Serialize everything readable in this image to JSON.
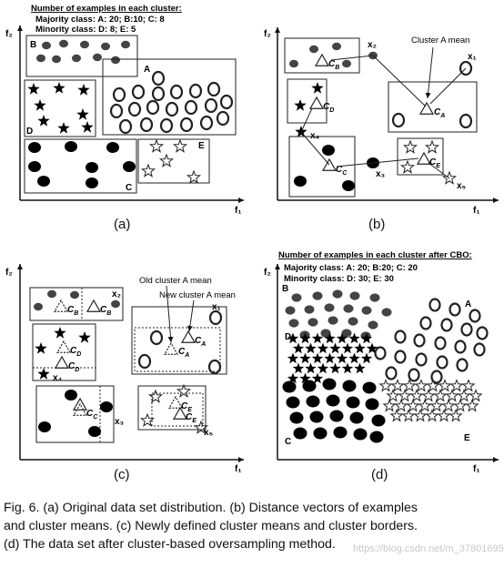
{
  "panels": {
    "a": {
      "header": "Number of examples in each cluster:",
      "majority_line": "Majority class: A: 20; B:10; C: 8",
      "minority_line": "Minority class: D: 8; E: 5",
      "axis_x": "f₁",
      "axis_y": "f₂",
      "clusters": [
        "A",
        "B",
        "C",
        "D",
        "E"
      ],
      "sub_label": "(a)"
    },
    "b": {
      "annotation": "Cluster A mean",
      "points": [
        "x₁",
        "x₂",
        "x₃",
        "x₄",
        "x₅"
      ],
      "means": [
        "C_A",
        "C_B",
        "C_C",
        "C_D",
        "C_E"
      ],
      "axis_x": "f₁",
      "axis_y": "f₂",
      "sub_label": "(b)"
    },
    "c": {
      "annotation_old": "Old cluster A mean",
      "annotation_new": "New cluster A mean",
      "points": [
        "x₁",
        "x₂",
        "x₃",
        "x₄",
        "x₅"
      ],
      "means": [
        "C_A",
        "C_B",
        "C_C",
        "C_D",
        "C_E"
      ],
      "axis_x": "f₁",
      "axis_y": "f₂",
      "sub_label": "(c)"
    },
    "d": {
      "header": "Number of examples in each cluster after CBO:",
      "majority_line": "Majority class: A: 20; B:20; C: 20",
      "minority_line": "Minority class: D: 30; E: 30",
      "axis_x": "f₁",
      "axis_y": "f₂",
      "clusters": [
        "A",
        "B",
        "C",
        "D",
        "E"
      ],
      "sub_label": "(d)"
    }
  },
  "caption": {
    "line1": "Fig. 6. (a) Original data set distribution. (b) Distance vectors of examples",
    "line2": "and cluster means. (c) Newly defined cluster means and cluster borders.",
    "line3": "(d) The data set after cluster-based oversampling method."
  },
  "watermark": "https://blog.csdn.net/m_37801695"
}
